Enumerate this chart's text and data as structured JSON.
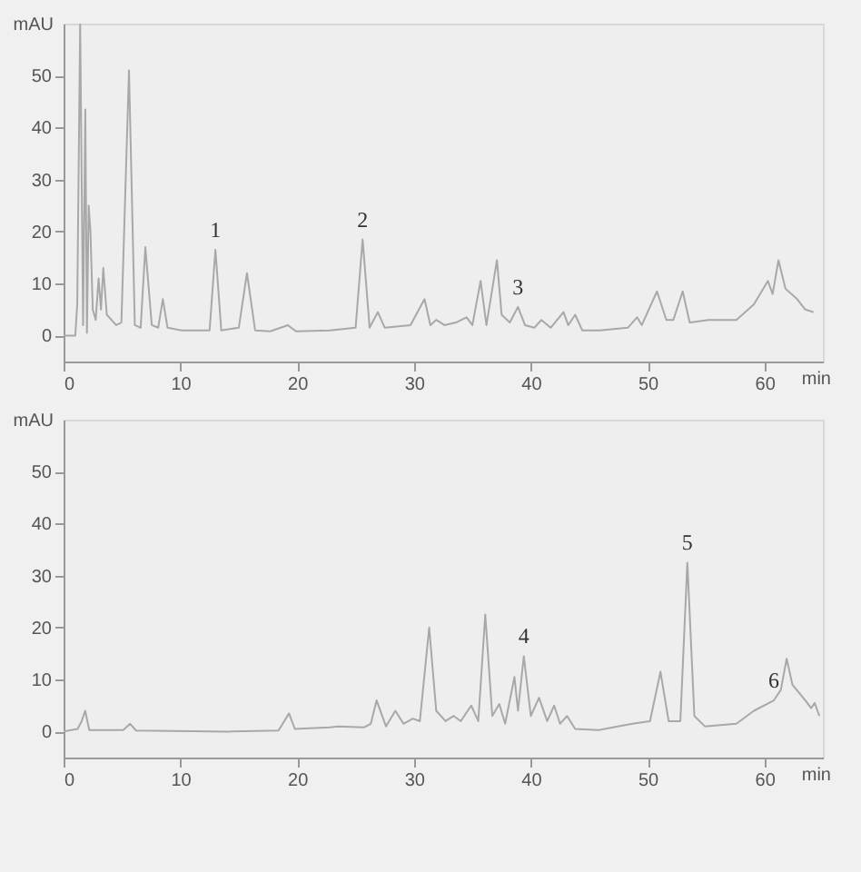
{
  "chart_data": [
    {
      "type": "line",
      "xlabel": "min",
      "ylabel": "mAU",
      "xlim": [
        0,
        65
      ],
      "xticks": [
        0,
        10,
        20,
        30,
        40,
        50,
        60
      ],
      "ylim": [
        -5,
        60
      ],
      "yticks": [
        0,
        10,
        20,
        30,
        40,
        50
      ],
      "series": [
        {
          "color": "#a8a8a8",
          "x": [
            0,
            1.0,
            1.17,
            1.42,
            1.67,
            1.86,
            2.0,
            2.15,
            2.3,
            2.5,
            2.75,
            3.0,
            3.2,
            3.4,
            3.7,
            4.5,
            4.95,
            5.6,
            6.1,
            6.6,
            7.0,
            7.55,
            8.1,
            8.5,
            8.9,
            10.1,
            12.5,
            13.0,
            13.5,
            15.0,
            15.7,
            16.4,
            17.7,
            19.2,
            19.9,
            22.8,
            25.0,
            25.6,
            26.2,
            26.9,
            27.5,
            29.7,
            30.9,
            31.4,
            31.9,
            32.6,
            33.6,
            34.5,
            35.0,
            35.7,
            36.2,
            37.1,
            37.5,
            38.2,
            38.9,
            39.5,
            40.3,
            40.9,
            41.7,
            42.8,
            43.2,
            43.8,
            44.4,
            45.9,
            48.3,
            49.1,
            49.5,
            50.8,
            51.6,
            52.2,
            53.0,
            53.6,
            55.2,
            57.6,
            59.1,
            60.3,
            60.7,
            61.2,
            61.8,
            62.8,
            63.5,
            64.2
          ],
          "values": [
            0,
            0,
            6,
            60,
            2,
            43.5,
            0.5,
            25,
            20,
            5,
            3,
            11,
            5,
            13,
            4,
            2,
            2.5,
            51,
            2,
            1.5,
            17,
            2,
            1.5,
            7,
            1.5,
            1,
            1,
            16.5,
            1,
            1.5,
            12,
            1,
            0.8,
            2,
            0.8,
            1,
            1.5,
            18.5,
            1.5,
            4.5,
            1.5,
            2,
            7,
            2,
            3,
            2,
            2.5,
            3.5,
            2,
            10.5,
            2,
            14.5,
            4,
            2.5,
            5.5,
            2,
            1.5,
            3,
            1.5,
            4.5,
            2,
            4,
            1,
            1,
            1.5,
            3.5,
            2,
            8.5,
            3,
            3,
            8.5,
            2.5,
            3,
            3,
            6,
            10.5,
            8,
            14.5,
            9,
            7,
            5,
            4.5
          ]
        }
      ],
      "annotations": [
        {
          "text": "1",
          "x": 13.0,
          "y": 16.5
        },
        {
          "text": "2",
          "x": 25.6,
          "y": 18.5
        },
        {
          "text": "3",
          "x": 38.9,
          "y": 5.5
        }
      ]
    },
    {
      "type": "line",
      "xlabel": "min",
      "ylabel": "mAU",
      "xlim": [
        0,
        65
      ],
      "xticks": [
        0,
        10,
        20,
        30,
        40,
        50,
        60
      ],
      "ylim": [
        -5,
        60
      ],
      "yticks": [
        0,
        10,
        20,
        30,
        40,
        50
      ],
      "series": [
        {
          "color": "#a8a8a8",
          "x": [
            0,
            1.2,
            1.55,
            1.85,
            2.2,
            5.1,
            5.7,
            6.2,
            14.1,
            18.4,
            19.3,
            19.8,
            22.8,
            23.5,
            25.7,
            26.3,
            26.8,
            27.6,
            28.4,
            29.1,
            29.9,
            30.5,
            31.3,
            31.9,
            32.7,
            33.4,
            34.0,
            34.9,
            35.5,
            36.1,
            36.7,
            37.3,
            37.8,
            38.6,
            38.9,
            39.4,
            40.0,
            40.7,
            41.4,
            42.0,
            42.5,
            43.1,
            43.8,
            45.8,
            48.7,
            50.2,
            51.1,
            51.8,
            52.8,
            53.4,
            54.0,
            54.9,
            57.6,
            59.1,
            60.8,
            61.4,
            61.9,
            62.4,
            63.5,
            64.0,
            64.3,
            64.7
          ],
          "values": [
            0,
            0.5,
            2,
            4,
            0.3,
            0.3,
            1.5,
            0.2,
            0,
            0.2,
            3.5,
            0.5,
            0.8,
            1,
            0.8,
            1.5,
            6,
            1,
            4,
            1.5,
            2.5,
            2,
            20,
            4,
            2,
            3,
            2,
            5,
            2,
            22.5,
            3,
            5.3,
            1.5,
            10.5,
            4,
            14.5,
            3,
            6.5,
            2,
            5,
            1.5,
            3,
            0.5,
            0.3,
            1.5,
            2,
            11.5,
            2,
            2,
            32.5,
            3,
            1,
            1.5,
            4,
            6,
            8,
            14,
            9,
            6,
            4.5,
            5.5,
            3
          ]
        }
      ],
      "annotations": [
        {
          "text": "4",
          "x": 39.4,
          "y": 14.5
        },
        {
          "text": "5",
          "x": 53.4,
          "y": 32.5
        },
        {
          "text": "6",
          "x": 60.8,
          "y": 6
        }
      ]
    }
  ]
}
